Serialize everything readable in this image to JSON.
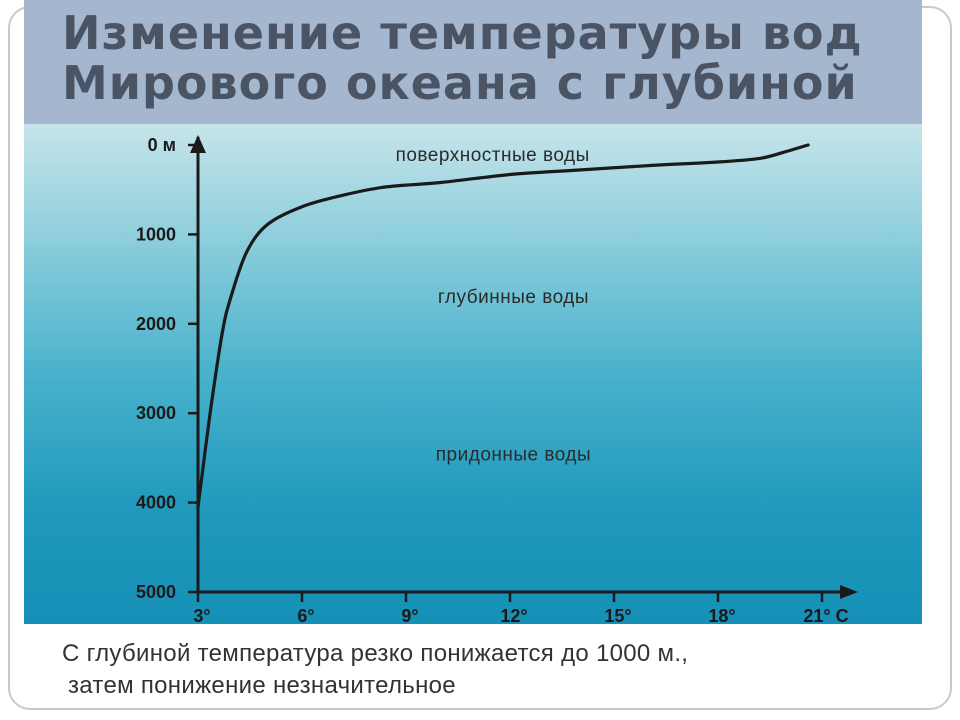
{
  "title": {
    "line1": "Изменение температуры вод",
    "line2": "Мирового океана с глубиной"
  },
  "caption": {
    "line1": "С глубиной температура резко понижается до 1000 м.,",
    "line2": "затем понижение незначительное"
  },
  "colors": {
    "title_band": "#a5b6cf",
    "title_text": "#4b5464",
    "water_top": "#c7e4ea",
    "water_bottom": "#1690b6",
    "curve": "#1a1a1a"
  },
  "chart_data": {
    "type": "line",
    "title": "Изменение температуры вод Мирового океана с глубиной",
    "xlabel": "",
    "ylabel": "",
    "xlim": [
      3,
      21
    ],
    "ylim": [
      0,
      5000
    ],
    "y_inverted": true,
    "x_ticks": [
      "3°",
      "6°",
      "9°",
      "12°",
      "15°",
      "18°",
      "21° C"
    ],
    "y_ticks": [
      "0 м",
      "1000",
      "2000",
      "3000",
      "4000",
      "5000"
    ],
    "grid": false,
    "legend": "none",
    "zones": [
      {
        "label": "поверхностные воды",
        "temp": 11.5,
        "depth": 110
      },
      {
        "label": "глубинные воды",
        "temp": 12.1,
        "depth": 1700
      },
      {
        "label": "придонные воды",
        "temp": 12.1,
        "depth": 3460
      }
    ],
    "series": [
      {
        "x": [
          3.0,
          3.35,
          3.7,
          3.95,
          4.4,
          5.0,
          6.0,
          7.2,
          8.4,
          10.0,
          12.0,
          14.0,
          16.0,
          18.0,
          19.2,
          19.9,
          20.6
        ],
        "y": [
          4050,
          3000,
          2100,
          1700,
          1200,
          890,
          690,
          560,
          470,
          420,
          330,
          280,
          230,
          190,
          150,
          80,
          0
        ]
      }
    ]
  }
}
